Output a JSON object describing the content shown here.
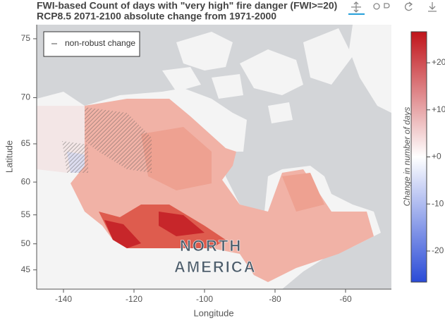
{
  "chart_data": {
    "type": "map",
    "title": "FWI-based Count of days with \"very high\" fire danger (FWI>=20)",
    "subtitle": "RCP8.5 2071-2100 absolute change from 1971-2000",
    "xlabel": "Longitude",
    "ylabel": "Latitude",
    "xlim": [
      -147.6,
      -47
    ],
    "xticks": [
      -140,
      -120,
      -100,
      -80,
      -60
    ],
    "ylim": [
      41,
      76
    ],
    "yticks": [
      45,
      50,
      55,
      60,
      65,
      70,
      75
    ],
    "yscale": "mercator",
    "legend": {
      "label": "non-robust change",
      "position": "upper left"
    },
    "colorbar": {
      "label": "Change in number of days",
      "clim": [
        -26.6,
        26.6
      ],
      "ticks": [
        {
          "value": 20,
          "label": "+20"
        },
        {
          "value": 10,
          "label": "+10"
        },
        {
          "value": 0,
          "label": "+0"
        },
        -10,
        -20
      ],
      "colors": [
        "#2a4bd7",
        "#ffffff",
        "#c0141a"
      ]
    },
    "map_labels": [
      "NORTH",
      "AMERICA"
    ]
  }
}
